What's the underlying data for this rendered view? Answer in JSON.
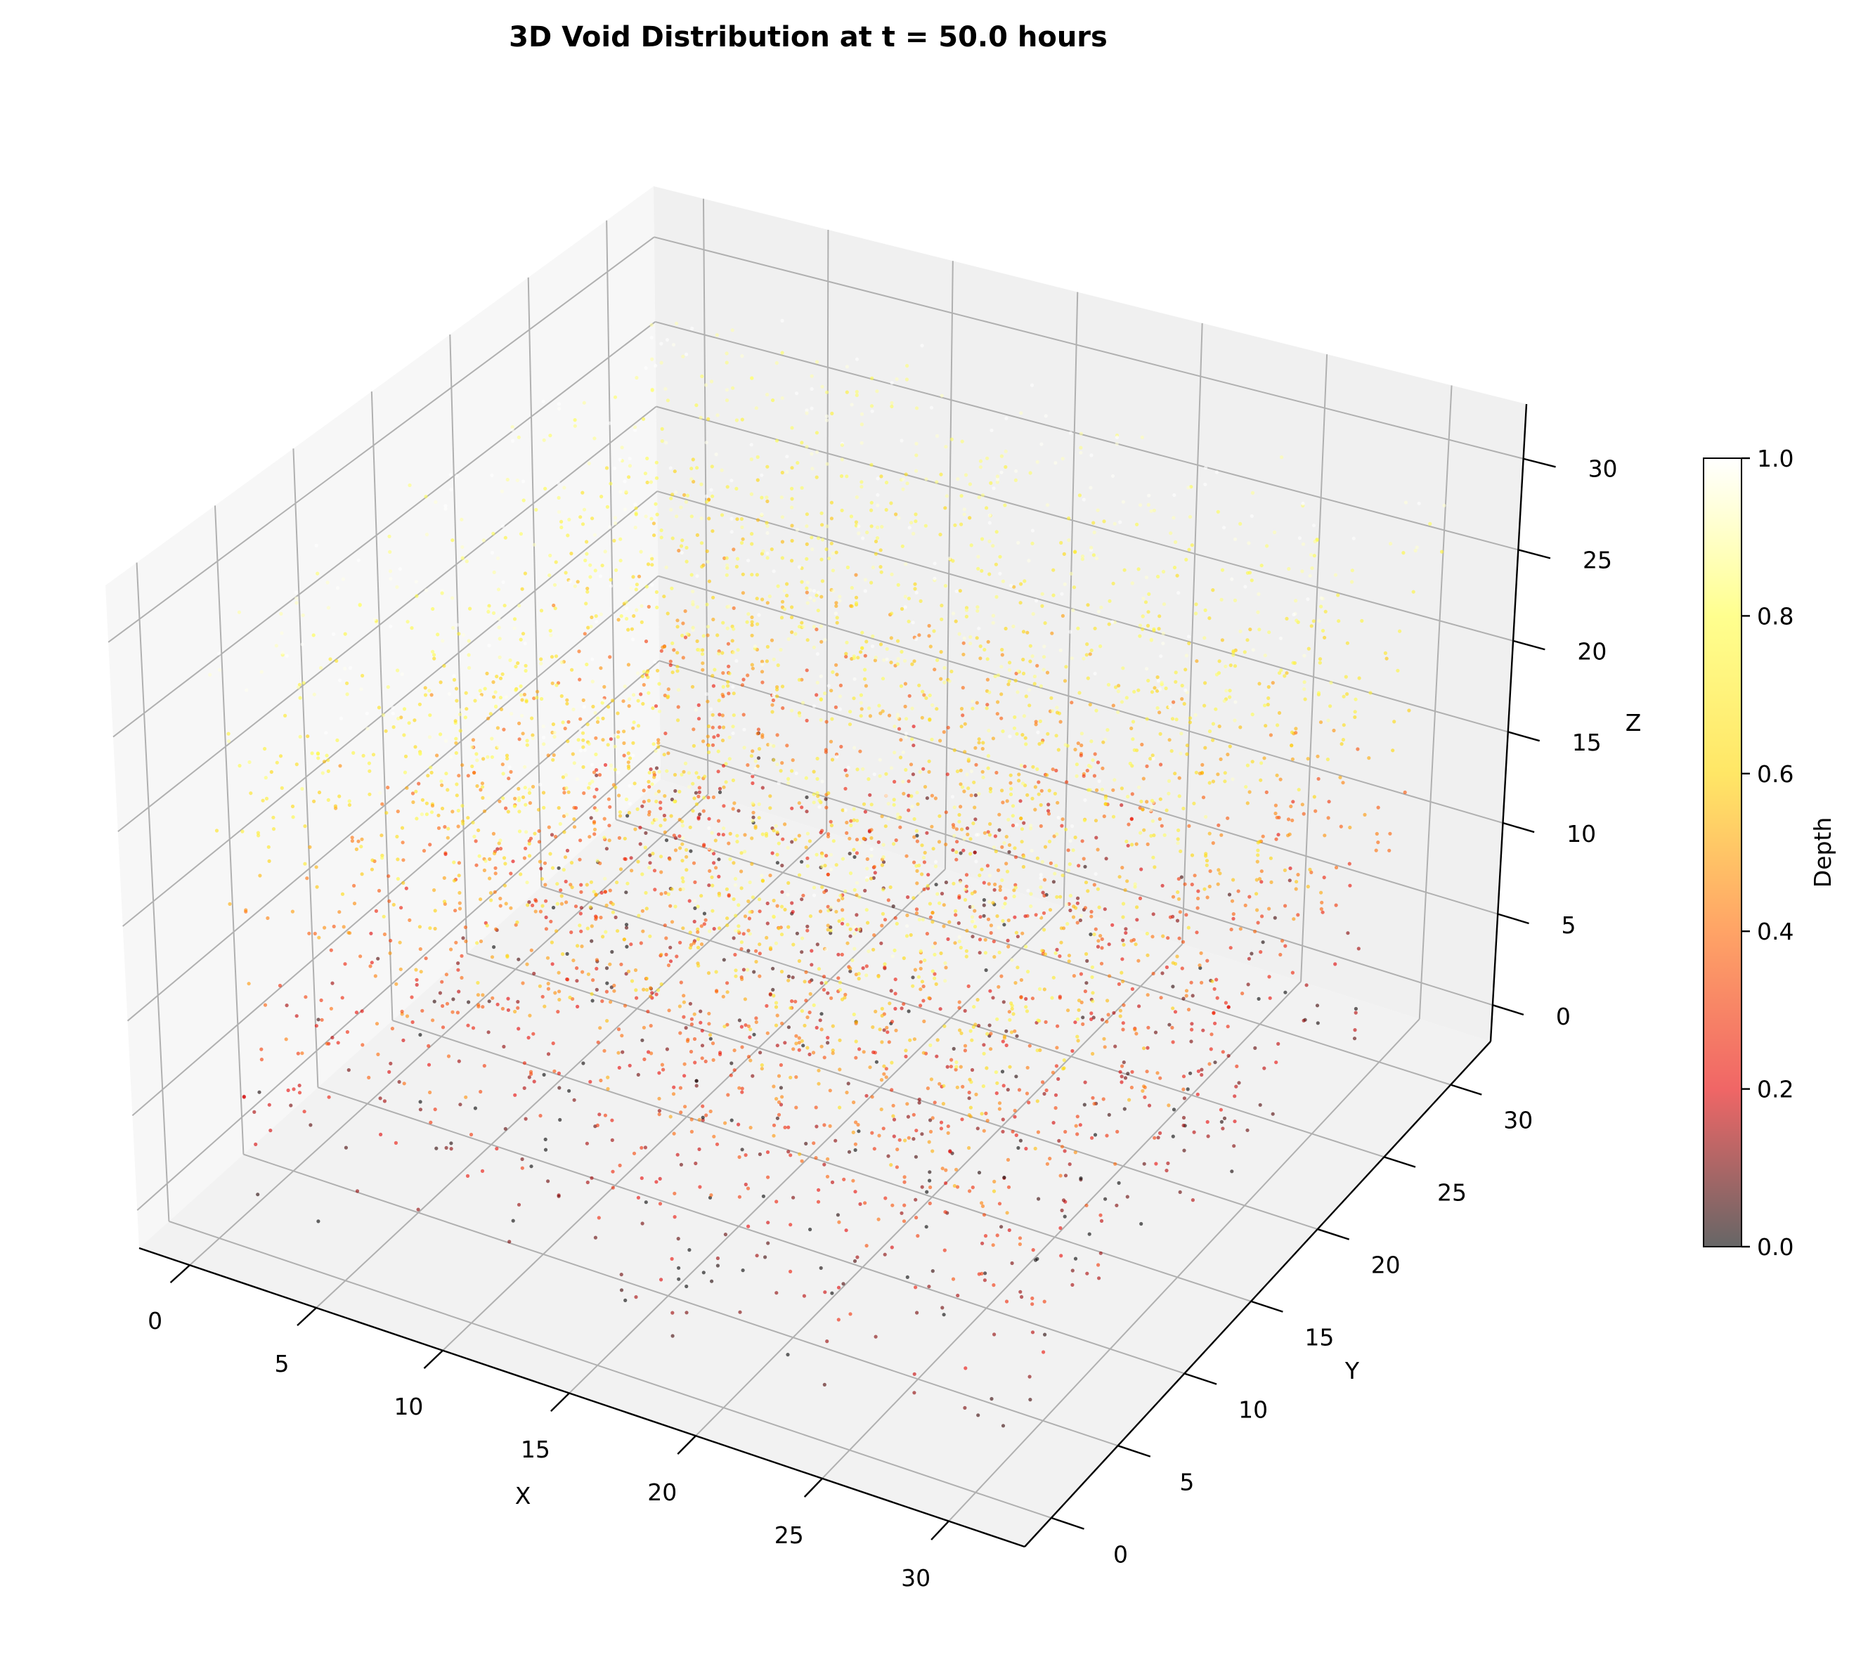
{
  "chart_data": {
    "type": "scatter",
    "projection": "3d",
    "title": "3D Void Distribution at t = 50.0 hours",
    "xlabel": "X",
    "ylabel": "Y",
    "zlabel": "Z",
    "xlim": [
      -2,
      33
    ],
    "ylim": [
      -2,
      33
    ],
    "zlim": [
      -2,
      33
    ],
    "x_ticks": [
      0,
      5,
      10,
      15,
      20,
      25,
      30
    ],
    "y_ticks": [
      0,
      5,
      10,
      15,
      20,
      25,
      30
    ],
    "z_ticks": [
      0,
      5,
      10,
      15,
      20,
      25,
      30
    ],
    "x_tick_labels": [
      "0",
      "5",
      "10",
      "15",
      "20",
      "25",
      "30"
    ],
    "y_tick_labels": [
      "0",
      "5",
      "10",
      "15",
      "20",
      "25",
      "30"
    ],
    "z_tick_labels": [
      "0",
      "5",
      "10",
      "15",
      "20",
      "25",
      "30"
    ],
    "grid": true,
    "colormap": "hot",
    "color_value": "Depth",
    "alpha": 0.6,
    "approx_point_count": 4500,
    "colorbar": {
      "label": "Depth",
      "range": [
        0.0,
        1.0
      ],
      "ticks": [
        0.0,
        0.2,
        0.4,
        0.6,
        0.8,
        1.0
      ],
      "tick_labels": [
        "0.0",
        "0.2",
        "0.4",
        "0.6",
        "0.8",
        "1.0"
      ],
      "placement": "right"
    },
    "colormap_stops": [
      "#000000",
      "#e60000",
      "#ff6600",
      "#ffd600",
      "#ffff44",
      "#ffffff"
    ]
  }
}
